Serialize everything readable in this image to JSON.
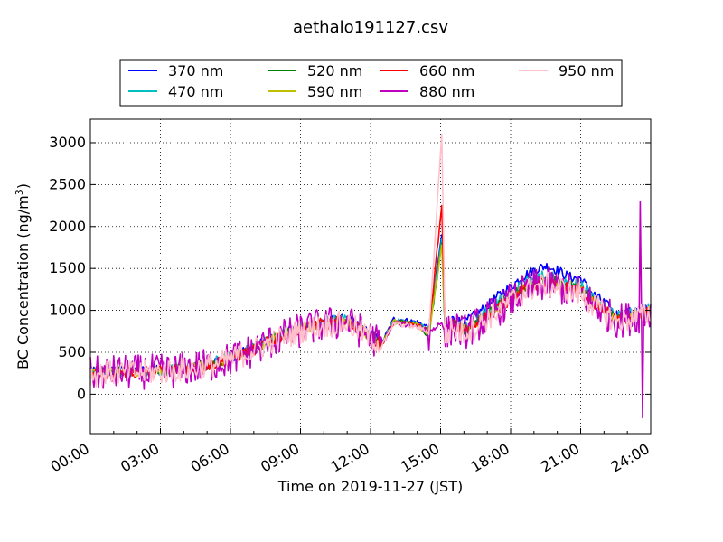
{
  "chart_data": {
    "type": "line",
    "title": "aethalo191127.csv",
    "xlabel": "Time on 2019-11-27 (JST)",
    "ylabel": "BC Concentration (ng/m",
    "ylabel_sup": "3",
    "ylabel_tail": ")",
    "xlim_hours": [
      0,
      24
    ],
    "ylim": [
      -470,
      3280
    ],
    "x_ticks": [
      "00:00",
      "03:00",
      "06:00",
      "09:00",
      "12:00",
      "15:00",
      "18:00",
      "21:00",
      "24:00"
    ],
    "y_ticks": [
      0,
      500,
      1000,
      1500,
      2000,
      2500,
      3000
    ],
    "grid": true,
    "legend_position": "top-center",
    "series": [
      {
        "name": "370 nm",
        "color": "#0000ff",
        "baseline": [
          [
            0,
            260
          ],
          [
            1,
            280
          ],
          [
            2,
            285
          ],
          [
            3,
            290
          ],
          [
            4,
            320
          ],
          [
            5,
            360
          ],
          [
            6,
            440
          ],
          [
            7,
            560
          ],
          [
            8,
            700
          ],
          [
            9,
            800
          ],
          [
            10,
            870
          ],
          [
            11,
            900
          ],
          [
            12,
            720
          ],
          [
            12.5,
            620
          ],
          [
            13,
            900
          ],
          [
            14,
            860
          ],
          [
            14.5,
            800
          ],
          [
            15.05,
            1900
          ],
          [
            15.2,
            750
          ],
          [
            15.5,
            900
          ],
          [
            16,
            850
          ],
          [
            16.5,
            950
          ],
          [
            17,
            1050
          ],
          [
            17.5,
            1180
          ],
          [
            18,
            1280
          ],
          [
            18.5,
            1400
          ],
          [
            19,
            1480
          ],
          [
            19.5,
            1530
          ],
          [
            20,
            1480
          ],
          [
            20.5,
            1400
          ],
          [
            21,
            1380
          ],
          [
            21.5,
            1200
          ],
          [
            22,
            1100
          ],
          [
            22.5,
            950
          ],
          [
            23,
            970
          ],
          [
            23.5,
            1000
          ],
          [
            24,
            1050
          ]
        ]
      },
      {
        "name": "470 nm",
        "color": "#00bfbf",
        "baseline": [
          [
            0,
            255
          ],
          [
            1,
            275
          ],
          [
            2,
            280
          ],
          [
            3,
            285
          ],
          [
            4,
            315
          ],
          [
            5,
            355
          ],
          [
            6,
            430
          ],
          [
            7,
            550
          ],
          [
            8,
            690
          ],
          [
            9,
            790
          ],
          [
            10,
            860
          ],
          [
            11,
            890
          ],
          [
            12,
            710
          ],
          [
            12.5,
            610
          ],
          [
            13,
            880
          ],
          [
            14,
            840
          ],
          [
            14.5,
            780
          ],
          [
            15.05,
            1850
          ],
          [
            15.2,
            730
          ],
          [
            15.5,
            860
          ],
          [
            16,
            800
          ],
          [
            16.5,
            890
          ],
          [
            17,
            980
          ],
          [
            17.5,
            1100
          ],
          [
            18,
            1200
          ],
          [
            18.5,
            1300
          ],
          [
            19,
            1380
          ],
          [
            19.5,
            1420
          ],
          [
            20,
            1380
          ],
          [
            20.5,
            1330
          ],
          [
            21,
            1300
          ],
          [
            21.5,
            1150
          ],
          [
            22,
            1050
          ],
          [
            22.5,
            920
          ],
          [
            23,
            940
          ],
          [
            23.5,
            980
          ],
          [
            24,
            1020
          ]
        ]
      },
      {
        "name": "520 nm",
        "color": "#008000",
        "baseline": [
          [
            0,
            250
          ],
          [
            1,
            270
          ],
          [
            2,
            275
          ],
          [
            3,
            280
          ],
          [
            4,
            310
          ],
          [
            5,
            350
          ],
          [
            6,
            425
          ],
          [
            7,
            545
          ],
          [
            8,
            680
          ],
          [
            9,
            780
          ],
          [
            10,
            850
          ],
          [
            11,
            880
          ],
          [
            12,
            700
          ],
          [
            12.5,
            600
          ],
          [
            13,
            870
          ],
          [
            14,
            830
          ],
          [
            14.5,
            700
          ],
          [
            15.05,
            1800
          ],
          [
            15.2,
            720
          ],
          [
            15.5,
            840
          ],
          [
            16,
            780
          ],
          [
            16.5,
            860
          ],
          [
            17,
            950
          ],
          [
            17.5,
            1060
          ],
          [
            18,
            1160
          ],
          [
            18.5,
            1260
          ],
          [
            19,
            1330
          ],
          [
            19.5,
            1370
          ],
          [
            20,
            1330
          ],
          [
            20.5,
            1290
          ],
          [
            21,
            1260
          ],
          [
            21.5,
            1120
          ],
          [
            22,
            1020
          ],
          [
            22.5,
            900
          ],
          [
            23,
            920
          ],
          [
            23.5,
            960
          ],
          [
            24,
            1000
          ]
        ]
      },
      {
        "name": "590 nm",
        "color": "#bfbf00",
        "baseline": [
          [
            0,
            248
          ],
          [
            1,
            268
          ],
          [
            2,
            272
          ],
          [
            3,
            278
          ],
          [
            4,
            308
          ],
          [
            5,
            348
          ],
          [
            6,
            422
          ],
          [
            7,
            540
          ],
          [
            8,
            675
          ],
          [
            9,
            775
          ],
          [
            10,
            845
          ],
          [
            11,
            875
          ],
          [
            12,
            695
          ],
          [
            12.5,
            598
          ],
          [
            13,
            865
          ],
          [
            14,
            825
          ],
          [
            14.5,
            720
          ],
          [
            15.05,
            1780
          ],
          [
            15.2,
            715
          ],
          [
            15.5,
            830
          ],
          [
            16,
            770
          ],
          [
            16.5,
            850
          ],
          [
            17,
            940
          ],
          [
            17.5,
            1050
          ],
          [
            18,
            1150
          ],
          [
            18.5,
            1240
          ],
          [
            19,
            1310
          ],
          [
            19.5,
            1350
          ],
          [
            20,
            1310
          ],
          [
            20.5,
            1270
          ],
          [
            21,
            1240
          ],
          [
            21.5,
            1110
          ],
          [
            22,
            1010
          ],
          [
            22.5,
            895
          ],
          [
            23,
            915
          ],
          [
            23.5,
            955
          ],
          [
            24,
            995
          ]
        ]
      },
      {
        "name": "660 nm",
        "color": "#ff0000",
        "baseline": [
          [
            0,
            245
          ],
          [
            1,
            265
          ],
          [
            2,
            270
          ],
          [
            3,
            275
          ],
          [
            4,
            305
          ],
          [
            5,
            345
          ],
          [
            6,
            420
          ],
          [
            7,
            535
          ],
          [
            8,
            670
          ],
          [
            9,
            770
          ],
          [
            10,
            840
          ],
          [
            11,
            870
          ],
          [
            12,
            690
          ],
          [
            12.5,
            595
          ],
          [
            13,
            860
          ],
          [
            14,
            820
          ],
          [
            14.5,
            760
          ],
          [
            15.05,
            2250
          ],
          [
            15.2,
            710
          ],
          [
            15.5,
            820
          ],
          [
            16,
            760
          ],
          [
            16.5,
            840
          ],
          [
            17,
            930
          ],
          [
            17.5,
            1040
          ],
          [
            18,
            1140
          ],
          [
            18.5,
            1230
          ],
          [
            19,
            1300
          ],
          [
            19.5,
            1340
          ],
          [
            20,
            1300
          ],
          [
            20.5,
            1260
          ],
          [
            21,
            1230
          ],
          [
            21.5,
            1100
          ],
          [
            22,
            1000
          ],
          [
            22.5,
            890
          ],
          [
            23,
            910
          ],
          [
            23.5,
            950
          ],
          [
            24,
            990
          ]
        ]
      },
      {
        "name": "880 nm",
        "color": "#bf00bf",
        "baseline": [
          [
            0,
            240
          ],
          [
            1,
            260
          ],
          [
            2,
            265
          ],
          [
            3,
            270
          ],
          [
            4,
            300
          ],
          [
            5,
            340
          ],
          [
            6,
            415
          ],
          [
            7,
            530
          ],
          [
            8,
            660
          ],
          [
            9,
            760
          ],
          [
            10,
            830
          ],
          [
            11,
            860
          ],
          [
            12,
            680
          ],
          [
            12.5,
            590
          ],
          [
            13,
            850
          ],
          [
            14,
            810
          ],
          [
            14.5,
            750
          ],
          [
            15.05,
            850
          ],
          [
            15.2,
            700
          ],
          [
            15.5,
            800
          ],
          [
            16,
            740
          ],
          [
            16.5,
            820
          ],
          [
            17,
            910
          ],
          [
            17.5,
            1020
          ],
          [
            18,
            1120
          ],
          [
            18.5,
            1210
          ],
          [
            19,
            1280
          ],
          [
            19.5,
            1320
          ],
          [
            20,
            1280
          ],
          [
            20.5,
            1240
          ],
          [
            21,
            1210
          ],
          [
            21.5,
            1080
          ],
          [
            22,
            980
          ],
          [
            22.5,
            880
          ],
          [
            23,
            900
          ],
          [
            23.5,
            940
          ],
          [
            24,
            980
          ]
        ]
      },
      {
        "name": "950 nm",
        "color": "#ffc0cb",
        "baseline": [
          [
            0,
            235
          ],
          [
            1,
            255
          ],
          [
            2,
            260
          ],
          [
            3,
            265
          ],
          [
            4,
            295
          ],
          [
            5,
            335
          ],
          [
            6,
            410
          ],
          [
            7,
            525
          ],
          [
            8,
            650
          ],
          [
            9,
            750
          ],
          [
            10,
            820
          ],
          [
            11,
            850
          ],
          [
            12,
            670
          ],
          [
            12.5,
            585
          ],
          [
            13,
            845
          ],
          [
            14,
            800
          ],
          [
            14.5,
            740
          ],
          [
            15.05,
            3100
          ],
          [
            15.2,
            690
          ],
          [
            15.5,
            790
          ],
          [
            16,
            730
          ],
          [
            16.5,
            810
          ],
          [
            17,
            900
          ],
          [
            17.5,
            1010
          ],
          [
            18,
            1110
          ],
          [
            18.5,
            1200
          ],
          [
            19,
            1270
          ],
          [
            19.5,
            1310
          ],
          [
            20,
            1270
          ],
          [
            20.5,
            1230
          ],
          [
            21,
            1200
          ],
          [
            21.5,
            1070
          ],
          [
            22,
            970
          ],
          [
            22.5,
            870
          ],
          [
            23,
            890
          ],
          [
            23.5,
            930
          ],
          [
            24,
            970
          ]
        ]
      }
    ]
  }
}
